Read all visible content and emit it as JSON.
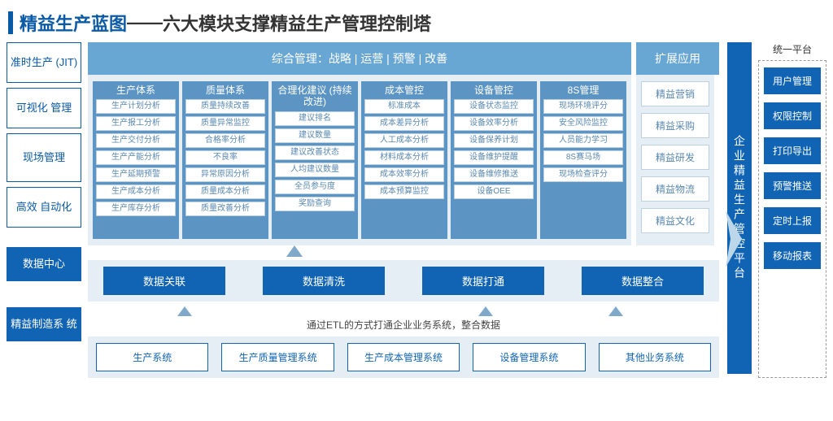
{
  "title": {
    "main": "精益生产蓝图",
    "sep": "——",
    "sub": "六大模块支撑精益生产管理控制塔"
  },
  "left": [
    "准时生产 (JIT)",
    "可视化 管理",
    "现场管理",
    "高效 自动化",
    "数据中心",
    "精益制造系 统"
  ],
  "topbar": "综合管理：战略 | 运营 | 预警 | 改善",
  "expand_title": "扩展应用",
  "modules": [
    {
      "title": "生产体系",
      "items": [
        "生产计划分析",
        "生产报工分析",
        "生产交付分析",
        "生产产能分析",
        "生产延期预警",
        "生产成本分析",
        "生产库存分析"
      ]
    },
    {
      "title": "质量体系",
      "items": [
        "质量持续改善",
        "质量异常监控",
        "合格率分析",
        "不良率",
        "异常原因分析",
        "质量成本分析",
        "质量改善分析"
      ]
    },
    {
      "title": "合理化建议 (持续改进)",
      "items": [
        "建议排名",
        "建议数量",
        "建议改善状态",
        "人均建议数量",
        "全员参与度",
        "奖励查询"
      ]
    },
    {
      "title": "成本管控",
      "items": [
        "标准成本",
        "成本差异分析",
        "人工成本分析",
        "材料成本分析",
        "成本效率分析",
        "成本预算监控"
      ]
    },
    {
      "title": "设备管控",
      "items": [
        "设备状态监控",
        "设备效率分析",
        "设备保养计划",
        "设备维护提醒",
        "设备维修推送",
        "设备OEE"
      ]
    },
    {
      "title": "8S管理",
      "items": [
        "现场环境评分",
        "安全风险监控",
        "人员能力学习",
        "8S赛马场",
        "现场检查评分"
      ]
    }
  ],
  "expand": [
    "精益营销",
    "精益采购",
    "精益研发",
    "精益物流",
    "精益文化"
  ],
  "data_row": [
    "数据关联",
    "数据清洗",
    "数据打通",
    "数据整合"
  ],
  "etl_text": "通过ETL的方式打通企业业务系统，整合数据",
  "sys_row": [
    "生产系统",
    "生产质量管理系统",
    "生产成本管理系统",
    "设备管理系统",
    "其他业务系统"
  ],
  "platform": "企业精益生产管控平台",
  "unified_title": "统一平台",
  "unified": [
    "用户管理",
    "权限控制",
    "打印导出",
    "预警推送",
    "定时上报",
    "移动报表"
  ],
  "colors": {
    "primary": "#0a5aa6",
    "bar": "#68a7d4",
    "panel": "#e6eef5",
    "btn": "#1164b4",
    "mod": "#5c94c4"
  }
}
